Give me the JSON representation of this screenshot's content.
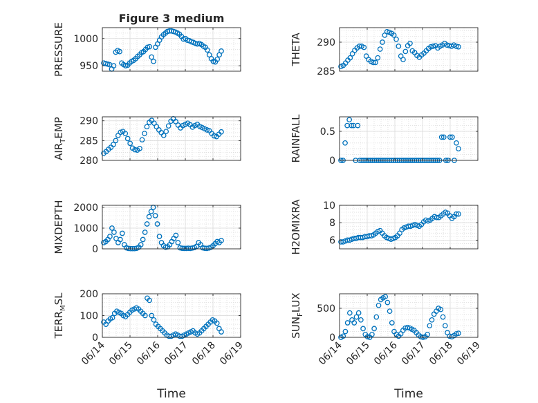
{
  "figure": {
    "title": "Figure 3 medium"
  },
  "chart_data": [
    {
      "type": "scatter",
      "id": "pressure",
      "title": "Figure 3 medium",
      "xlabel": "",
      "ylabel": "PRESSURE",
      "xlim": [
        "06/14",
        "06/19"
      ],
      "ylim": [
        940,
        1020
      ],
      "xticks": [
        "06/14",
        "06/15",
        "06/16",
        "06/17",
        "06/18",
        "06/19"
      ],
      "yticks": [
        950,
        1000
      ],
      "grid": true,
      "series": [
        {
          "x": [
            "06/14",
            "06/14",
            "06/14",
            "06/14",
            "06/14",
            "06/14",
            "06/14",
            "06/14",
            "06/14",
            "06/14",
            "06/14",
            "06/14",
            "06/14",
            "06/14",
            "06/14",
            "06/15",
            "06/15",
            "06/15",
            "06/15",
            "06/15",
            "06/15",
            "06/15",
            "06/15",
            "06/15",
            "06/15",
            "06/15",
            "06/15",
            "06/15",
            "06/15",
            "06/15",
            "06/15",
            "06/15",
            "06/16",
            "06/16",
            "06/16",
            "06/16",
            "06/16",
            "06/16",
            "06/16",
            "06/16",
            "06/16",
            "06/16",
            "06/16",
            "06/17",
            "06/17",
            "06/17",
            "06/17",
            "06/17",
            "06/17",
            "06/17",
            "06/17",
            "06/17",
            "06/17",
            "06/17",
            "06/18",
            "06/18",
            "06/18",
            "06/18",
            "06/18",
            "06/18"
          ],
          "y": [
            955,
            954,
            953,
            952,
            944,
            950,
            975,
            978,
            976,
            955,
            952,
            950,
            951,
            955,
            958,
            960,
            963,
            967,
            970,
            974,
            976,
            980,
            984,
            985,
            966,
            958,
            984,
            990,
            997,
            1003,
            1007,
            1010,
            1013,
            1014,
            1014,
            1013,
            1012,
            1010,
            1008,
            1004,
            999,
            1000,
            997,
            996,
            994,
            993,
            991,
            990,
            991,
            989,
            986,
            984,
            979,
            970,
            963,
            958,
            957,
            962,
            970,
            977
          ]
        }
      ]
    },
    {
      "type": "scatter",
      "id": "theta",
      "title": "",
      "xlabel": "",
      "ylabel": "THETA",
      "xlim": [
        "06/14",
        "06/19"
      ],
      "ylim": [
        285,
        292.5
      ],
      "xticks": [
        "06/14",
        "06/15",
        "06/16",
        "06/17",
        "06/18",
        "06/19"
      ],
      "yticks": [
        285,
        290
      ],
      "grid": true,
      "series": [
        {
          "y": [
            285.8,
            286.0,
            286.4,
            286.9,
            287.3,
            288.0,
            288.6,
            289.0,
            289.3,
            289.3,
            289.1,
            287.6,
            287.0,
            286.7,
            286.5,
            286.5,
            287.3,
            288.8,
            290.0,
            291.2,
            291.8,
            291.7,
            291.5,
            291.2,
            290.5,
            289.3,
            287.6,
            287.0,
            288.4,
            289.4,
            289.8,
            288.5,
            288.2,
            287.7,
            287.4,
            287.8,
            288.1,
            288.5,
            288.9,
            289.2,
            289.3,
            289.4,
            289.0,
            289.3,
            289.5,
            289.8,
            289.5,
            289.4,
            289.3,
            289.5,
            289.3,
            289.2
          ]
        }
      ]
    },
    {
      "type": "scatter",
      "id": "air-temp",
      "title": "",
      "xlabel": "",
      "ylabel": "AIR_TEMP",
      "xlim": [
        "06/14",
        "06/19"
      ],
      "ylim": [
        280,
        291
      ],
      "xticks": [
        "06/14",
        "06/15",
        "06/16",
        "06/17",
        "06/18",
        "06/19"
      ],
      "yticks": [
        280,
        285,
        290
      ],
      "grid": true,
      "series": [
        {
          "y": [
            281.8,
            282.2,
            282.8,
            283.3,
            284.0,
            285.0,
            286.3,
            287.1,
            287.3,
            286.8,
            285.5,
            284.3,
            283.1,
            282.7,
            282.6,
            283.0,
            285.2,
            286.8,
            288.5,
            289.6,
            290.1,
            289.4,
            288.5,
            287.7,
            287.0,
            286.3,
            287.3,
            288.7,
            289.9,
            290.5,
            289.8,
            288.9,
            288.2,
            288.8,
            289.1,
            289.4,
            289.0,
            288.4,
            288.8,
            289.1,
            288.6,
            288.3,
            288.0,
            287.7,
            287.5,
            286.8,
            286.2,
            286.0,
            286.6,
            287.2
          ]
        }
      ]
    },
    {
      "type": "scatter",
      "id": "rainfall",
      "title": "",
      "xlabel": "",
      "ylabel": "RAINFALL",
      "xlim": [
        "06/14",
        "06/19"
      ],
      "ylim": [
        0,
        0.75
      ],
      "xticks": [
        "06/14",
        "06/15",
        "06/16",
        "06/17",
        "06/18",
        "06/19"
      ],
      "yticks": [
        0,
        0.5
      ],
      "grid": true,
      "series": [
        {
          "y": [
            0,
            0,
            0.3,
            0.6,
            0.7,
            0.6,
            0.6,
            0,
            0.6,
            0,
            0,
            0,
            0,
            0,
            0,
            0,
            0,
            0,
            0,
            0,
            0,
            0,
            0,
            0,
            0,
            0,
            0,
            0,
            0,
            0,
            0,
            0,
            0,
            0,
            0,
            0,
            0,
            0,
            0,
            0,
            0,
            0,
            0,
            0,
            0,
            0,
            0,
            0,
            0.4,
            0.4,
            0,
            0,
            0.4,
            0.4,
            0,
            0.3,
            0.2
          ]
        }
      ]
    },
    {
      "type": "scatter",
      "id": "mixdepth",
      "title": "",
      "xlabel": "",
      "ylabel": "MIXDEPTH",
      "xlim": [
        "06/14",
        "06/19"
      ],
      "ylim": [
        0,
        2100
      ],
      "xticks": [
        "06/14",
        "06/15",
        "06/16",
        "06/17",
        "06/18",
        "06/19"
      ],
      "yticks": [
        0,
        1000,
        2000
      ],
      "grid": true,
      "series": [
        {
          "y": [
            300,
            350,
            450,
            600,
            1000,
            800,
            500,
            300,
            450,
            750,
            200,
            50,
            20,
            10,
            10,
            10,
            30,
            80,
            200,
            450,
            800,
            1200,
            1550,
            1800,
            2000,
            1600,
            1200,
            600,
            300,
            150,
            80,
            100,
            200,
            350,
            500,
            650,
            300,
            50,
            30,
            20,
            20,
            30,
            20,
            40,
            60,
            120,
            300,
            200,
            50,
            30,
            20,
            40,
            80,
            150,
            250,
            350,
            300,
            400
          ]
        }
      ]
    },
    {
      "type": "scatter",
      "id": "h2omixra",
      "title": "",
      "xlabel": "",
      "ylabel": "H2OMIXRA",
      "xlim": [
        "06/14",
        "06/19"
      ],
      "ylim": [
        5,
        10
      ],
      "xticks": [
        "06/14",
        "06/15",
        "06/16",
        "06/17",
        "06/18",
        "06/19"
      ],
      "yticks": [
        6,
        8,
        10
      ],
      "grid": true,
      "series": [
        {
          "y": [
            5.8,
            5.8,
            5.9,
            6.0,
            6.0,
            6.1,
            6.2,
            6.2,
            6.3,
            6.3,
            6.3,
            6.4,
            6.4,
            6.5,
            6.5,
            6.6,
            6.8,
            7.0,
            7.1,
            6.8,
            6.5,
            6.3,
            6.2,
            6.1,
            6.2,
            6.3,
            6.5,
            6.8,
            7.2,
            7.4,
            7.5,
            7.6,
            7.6,
            7.7,
            7.8,
            7.7,
            7.6,
            7.8,
            8.1,
            8.3,
            8.2,
            8.3,
            8.5,
            8.7,
            8.6,
            8.6,
            8.8,
            9.0,
            9.2,
            9.1,
            8.8,
            8.5,
            8.7,
            9.0,
            9.0
          ]
        }
      ]
    },
    {
      "type": "scatter",
      "id": "terr-msl",
      "title": "",
      "xlabel": "Time",
      "ylabel": "TERR_MSL",
      "xlim": [
        "06/14",
        "06/19"
      ],
      "ylim": [
        0,
        200
      ],
      "xticks": [
        "06/14",
        "06/15",
        "06/16",
        "06/17",
        "06/18",
        "06/19"
      ],
      "yticks": [
        0,
        100,
        200
      ],
      "grid": true,
      "series": [
        {
          "y": [
            70,
            60,
            75,
            85,
            90,
            110,
            120,
            115,
            110,
            100,
            95,
            105,
            115,
            125,
            130,
            135,
            130,
            120,
            110,
            100,
            180,
            170,
            100,
            80,
            60,
            50,
            40,
            30,
            20,
            10,
            5,
            5,
            10,
            15,
            10,
            5,
            5,
            10,
            15,
            20,
            25,
            30,
            20,
            15,
            20,
            30,
            40,
            50,
            60,
            70,
            80,
            75,
            65,
            40,
            25
          ]
        }
      ]
    },
    {
      "type": "scatter",
      "id": "sun-flux",
      "title": "",
      "xlabel": "Time",
      "ylabel": "SUN_FLUX",
      "xlim": [
        "06/14",
        "06/19"
      ],
      "ylim": [
        0,
        750
      ],
      "xticks": [
        "06/14",
        "06/15",
        "06/16",
        "06/17",
        "06/18",
        "06/19"
      ],
      "yticks": [
        0,
        500
      ],
      "grid": true,
      "series": [
        {
          "y": [
            0,
            20,
            100,
            250,
            420,
            300,
            250,
            350,
            420,
            300,
            150,
            50,
            10,
            0,
            50,
            150,
            350,
            550,
            650,
            680,
            700,
            600,
            450,
            250,
            100,
            50,
            20,
            60,
            120,
            160,
            170,
            160,
            140,
            120,
            80,
            40,
            10,
            0,
            10,
            50,
            200,
            300,
            400,
            450,
            500,
            480,
            350,
            200,
            80,
            20,
            10,
            30,
            60,
            70
          ]
        }
      ]
    }
  ]
}
